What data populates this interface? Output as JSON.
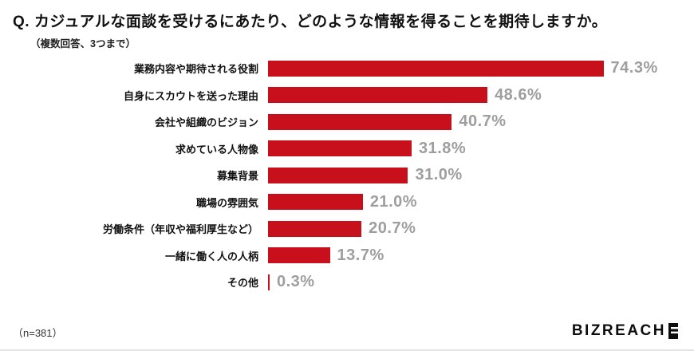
{
  "header": {
    "title": "Q. カジュアルな面談を受けるにあたり、どのような情報を得ることを期待しますか。",
    "subtitle": "（複数回答、3つまで）"
  },
  "footer": {
    "footnote": "（n=381）",
    "logo_text": "BIZREACH",
    "logo_mark": "bizreach-mark"
  },
  "colors": {
    "bar": "#c8101c",
    "value_label": "#9e9e9e",
    "title_text": "#111111"
  },
  "chart_data": {
    "type": "bar",
    "orientation": "horizontal",
    "title": "Q. カジュアルな面談を受けるにあたり、どのような情報を得ることを期待しますか。",
    "subtitle": "（複数回答、3つまで）",
    "categories": [
      "業務内容や期待される役割",
      "自身にスカウトを送った理由",
      "会社や組織のビジョン",
      "求めている人物像",
      "募集背景",
      "職場の雰囲気",
      "労働条件（年収や福利厚生など）",
      "一緒に働く人の人柄",
      "その他"
    ],
    "values": [
      74.3,
      48.6,
      40.7,
      31.8,
      31.0,
      21.0,
      20.7,
      13.7,
      0.3
    ],
    "value_labels": [
      "74.3%",
      "48.6%",
      "40.7%",
      "31.8%",
      "31.0%",
      "21.0%",
      "20.7%",
      "13.7%",
      "0.3%"
    ],
    "xlim": [
      0,
      80
    ],
    "grid": false,
    "legend": "none",
    "sample_size": "n=381"
  }
}
